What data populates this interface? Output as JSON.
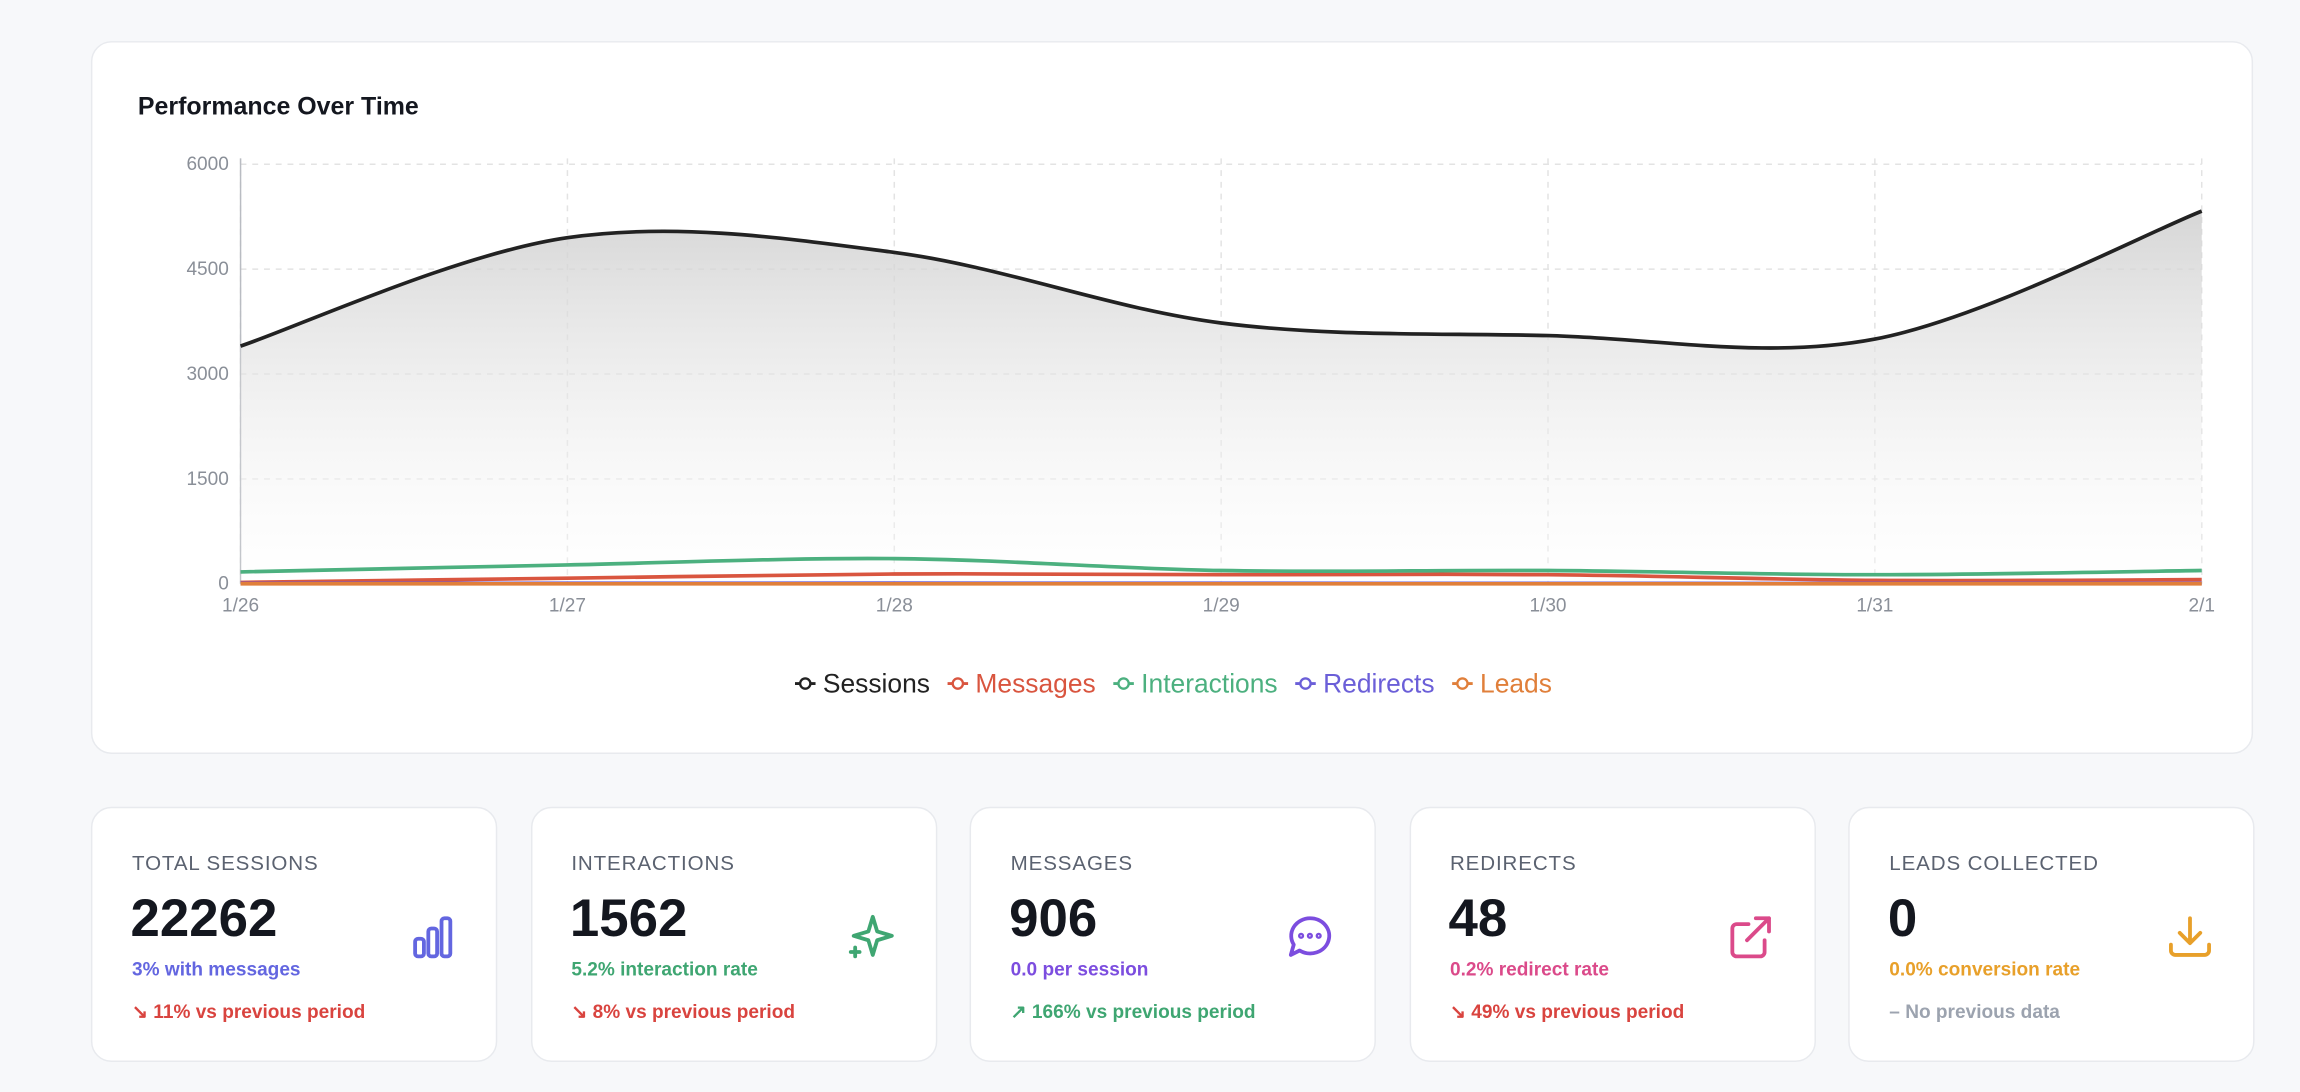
{
  "chart_data": {
    "type": "line",
    "title": "Performance Over Time",
    "categories": [
      "1/26",
      "1/27",
      "1/28",
      "1/29",
      "1/30",
      "1/31",
      "2/1"
    ],
    "series": [
      {
        "name": "Sessions",
        "color": "#222222",
        "area": true,
        "values": [
          3400,
          4950,
          4740,
          3730,
          3550,
          3500,
          5330
        ]
      },
      {
        "name": "Messages",
        "color": "#d9553f",
        "values": [
          20,
          80,
          140,
          130,
          130,
          50,
          60
        ]
      },
      {
        "name": "Interactions",
        "color": "#4cb07f",
        "values": [
          170,
          270,
          360,
          190,
          190,
          130,
          190
        ]
      },
      {
        "name": "Redirects",
        "color": "#6b5fd8",
        "values": [
          5,
          8,
          10,
          8,
          7,
          5,
          5
        ]
      },
      {
        "name": "Leads",
        "color": "#e07f3a",
        "values": [
          0,
          0,
          0,
          0,
          0,
          0,
          0
        ]
      }
    ],
    "ylim": [
      0,
      6000
    ],
    "yticks": [
      0,
      1500,
      3000,
      4500,
      6000
    ],
    "grid": true,
    "legend": "bottom"
  },
  "stats": [
    {
      "label": "Total Sessions",
      "value": 22262,
      "subtitle": "3% with messages",
      "change": "↘ 11% vs previous period",
      "color": "#6366e0",
      "change_color": "#d9443f"
    },
    {
      "label": "Interactions",
      "value": 1562,
      "subtitle": "5.2% interaction rate",
      "change": "↘ 8% vs previous period",
      "color": "#3fa672",
      "change_color": "#d9443f"
    },
    {
      "label": "Messages",
      "value": 906,
      "subtitle": "0.0 per session",
      "change": "↗ 166% vs previous period",
      "color": "#7c4ddf",
      "change_color": "#3fa672"
    },
    {
      "label": "Redirects",
      "value": 48,
      "subtitle": "0.2% redirect rate",
      "change": "↘ 49% vs previous period",
      "color": "#db4a8a",
      "change_color": "#d9443f"
    },
    {
      "label": "Leads Collected",
      "value": 0,
      "subtitle": "0.0% conversion rate",
      "change": "– No previous data",
      "color": "#e8a02a",
      "change_color": "#9ca3af"
    }
  ]
}
